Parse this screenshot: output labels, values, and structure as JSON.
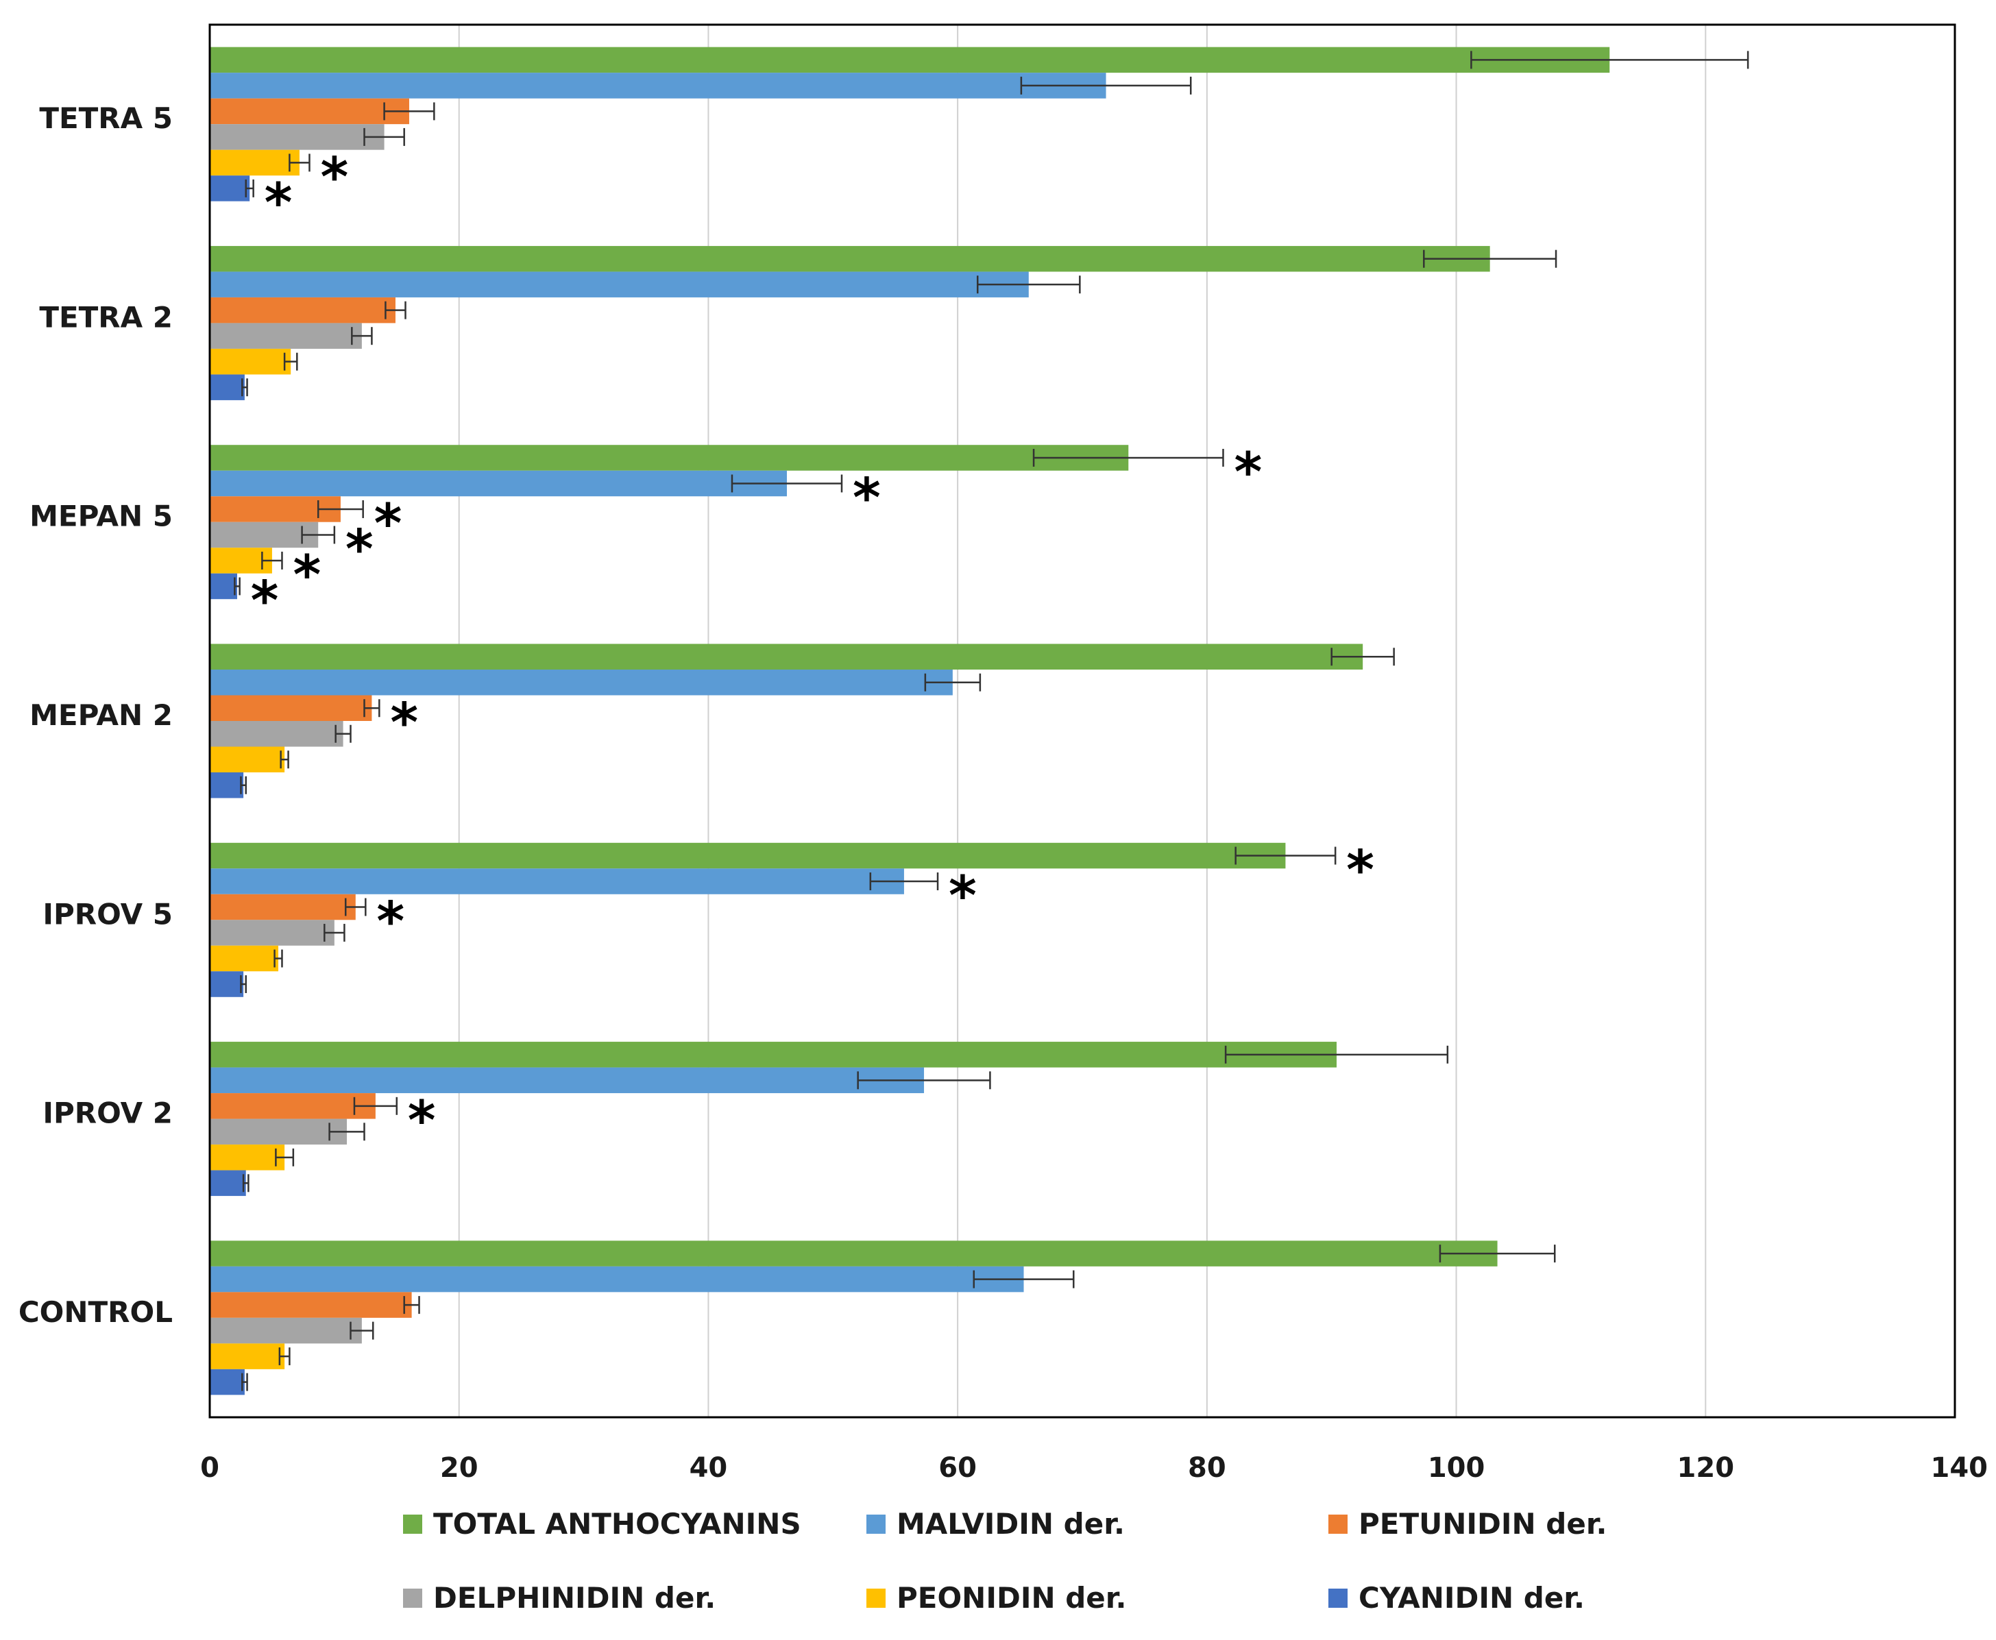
{
  "chart_data": {
    "type": "bar",
    "orientation": "horizontal",
    "title": "",
    "xlabel": "",
    "ylabel": "",
    "xlim": [
      0,
      140
    ],
    "x_ticks": [
      0,
      20,
      40,
      60,
      80,
      100,
      120,
      140
    ],
    "grid": "vertical",
    "legend_position": "bottom",
    "categories": [
      "TETRA 5",
      "TETRA 2",
      "MEPAN 5",
      "MEPAN 2",
      "IPROV 5",
      "IPROV 2",
      "CONTROL"
    ],
    "significance_marker": "*",
    "series": [
      {
        "name": "TOTAL ANTHOCYANINS",
        "color": "#70ad47",
        "values": [
          112.3,
          102.7,
          73.7,
          92.5,
          86.3,
          90.4,
          103.3
        ],
        "errors": [
          11.1,
          5.3,
          7.6,
          2.5,
          4.0,
          8.9,
          4.6
        ],
        "significant": [
          false,
          false,
          true,
          false,
          true,
          false,
          false
        ]
      },
      {
        "name": "MALVIDIN der.",
        "color": "#5b9bd5",
        "values": [
          71.9,
          65.7,
          46.3,
          59.6,
          55.7,
          57.3,
          65.3
        ],
        "errors": [
          6.8,
          4.1,
          4.4,
          2.2,
          2.7,
          5.3,
          4.0
        ],
        "significant": [
          false,
          false,
          true,
          false,
          true,
          false,
          false
        ]
      },
      {
        "name": "PETUNIDIN der.",
        "color": "#ed7d31",
        "values": [
          16.0,
          14.9,
          10.5,
          13.0,
          11.7,
          13.3,
          16.2
        ],
        "errors": [
          2.0,
          0.8,
          1.8,
          0.6,
          0.8,
          1.7,
          0.6
        ],
        "significant": [
          false,
          false,
          true,
          true,
          true,
          true,
          false
        ]
      },
      {
        "name": "DELPHINIDIN der.",
        "color": "#a5a5a5",
        "values": [
          14.0,
          12.2,
          8.7,
          10.7,
          10.0,
          11.0,
          12.2
        ],
        "errors": [
          1.6,
          0.8,
          1.3,
          0.6,
          0.8,
          1.4,
          0.9
        ],
        "significant": [
          false,
          false,
          true,
          false,
          false,
          false,
          false
        ]
      },
      {
        "name": "PEONIDIN der.",
        "color": "#ffc000",
        "values": [
          7.2,
          6.5,
          5.0,
          6.0,
          5.5,
          6.0,
          6.0
        ],
        "errors": [
          0.8,
          0.5,
          0.8,
          0.3,
          0.3,
          0.7,
          0.4
        ],
        "significant": [
          true,
          false,
          true,
          false,
          false,
          false,
          false
        ]
      },
      {
        "name": "CYANIDIN der.",
        "color": "#4472c4",
        "values": [
          3.2,
          2.8,
          2.2,
          2.7,
          2.7,
          2.9,
          2.8
        ],
        "errors": [
          0.3,
          0.2,
          0.2,
          0.2,
          0.2,
          0.2,
          0.2
        ],
        "significant": [
          true,
          false,
          true,
          false,
          false,
          false,
          false
        ]
      }
    ]
  }
}
